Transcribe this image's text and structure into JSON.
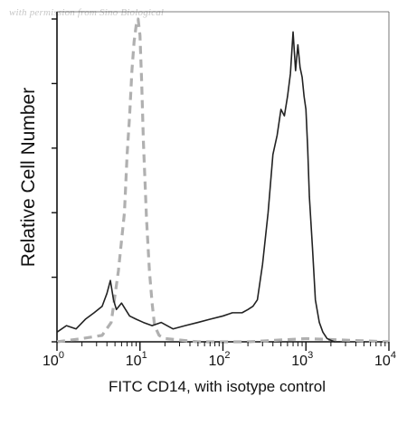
{
  "watermark": "with permission from Sino Biological",
  "chart_data": {
    "type": "line",
    "title": "",
    "xlabel": "FITC CD14, with isotype control",
    "ylabel": "Relative Cell Number",
    "x_scale": "log",
    "xlim": [
      1,
      10000
    ],
    "ylim": [
      0,
      100
    ],
    "x_ticks": [
      {
        "value": 1,
        "base": "10",
        "exp": "0"
      },
      {
        "value": 10,
        "base": "10",
        "exp": "1"
      },
      {
        "value": 100,
        "base": "10",
        "exp": "2"
      },
      {
        "value": 1000,
        "base": "10",
        "exp": "3"
      },
      {
        "value": 10000,
        "base": "10",
        "exp": "4"
      }
    ],
    "y_ticks": [
      0,
      20,
      40,
      60,
      80,
      100
    ],
    "grid": false,
    "legend": "none",
    "series": [
      {
        "style": "solid",
        "color": "#222222",
        "x": [
          1.0,
          1.3,
          1.7,
          2.2,
          2.8,
          3.5,
          4.0,
          4.4,
          4.8,
          5.2,
          6.0,
          7.5,
          9.0,
          11,
          14,
          18,
          25,
          35,
          50,
          70,
          100,
          130,
          170,
          200,
          230,
          260,
          300,
          350,
          400,
          450,
          500,
          550,
          600,
          650,
          700,
          750,
          800,
          850,
          900,
          950,
          1000,
          1050,
          1100,
          1200,
          1300,
          1450,
          1600,
          1800,
          2200,
          2600
        ],
        "y": [
          3,
          5,
          4,
          7,
          9,
          11,
          15,
          19,
          13,
          10,
          12,
          8,
          7,
          6,
          5,
          6,
          4,
          5,
          6,
          7,
          8,
          9,
          9,
          10,
          11,
          13,
          24,
          40,
          58,
          64,
          72,
          70,
          76,
          83,
          96,
          84,
          92,
          85,
          82,
          76,
          72,
          60,
          45,
          29,
          13,
          6,
          3,
          1,
          0,
          0
        ]
      },
      {
        "style": "dashed",
        "color": "#b0b0b0",
        "x": [
          1.0,
          2.0,
          3.5,
          4.5,
          5.5,
          6.5,
          7.0,
          7.5,
          8.0,
          8.5,
          9.0,
          9.5,
          10.0,
          10.5,
          11.0,
          12.0,
          13.0,
          14.0,
          15.0,
          17.0,
          20.0,
          50,
          200,
          1000,
          10000
        ],
        "y": [
          0,
          1,
          2,
          6,
          22,
          40,
          58,
          70,
          84,
          93,
          98,
          100,
          95,
          80,
          62,
          38,
          22,
          12,
          5,
          2,
          1,
          0,
          0,
          1,
          0
        ]
      }
    ]
  }
}
